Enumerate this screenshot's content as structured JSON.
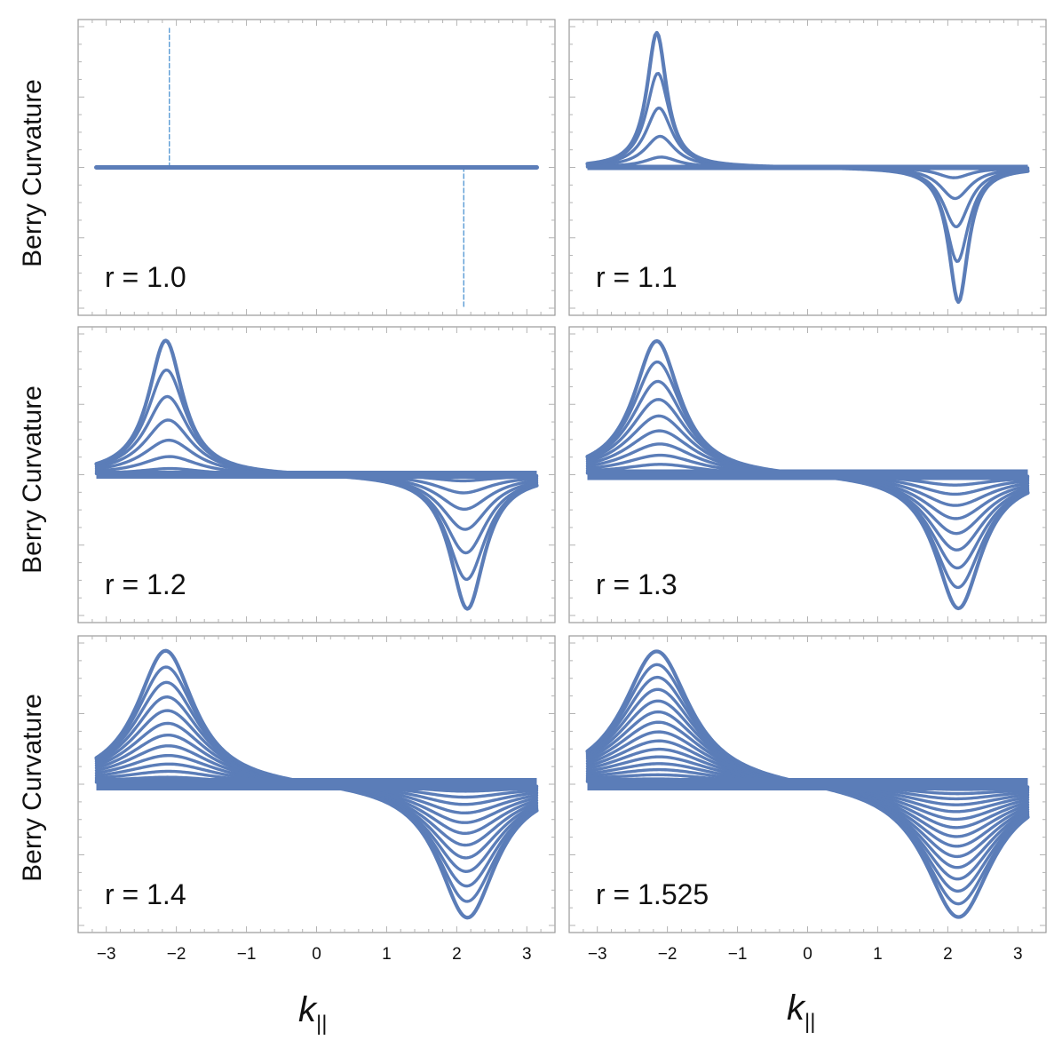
{
  "figure": {
    "ylabel": "Berry Curvature",
    "xlabel_main": "k",
    "xlabel_sub": "||",
    "line_color": "#5b7db8",
    "marker_color": "#5b9bd5",
    "frame_color": "#9a9a9a"
  },
  "chart_data": [
    {
      "type": "line",
      "panel": "top-left",
      "label": "r = 1.0",
      "r": 1.0,
      "xlim": [
        -3.3,
        3.3
      ],
      "ylim": [
        -1,
        1
      ],
      "xticks": [],
      "peak_center": 2.1,
      "peak_amplitude": 0.0,
      "num_curves": 1,
      "flat": true,
      "markers": [
        {
          "x": -2.1,
          "y0": 0,
          "y1": 1
        },
        {
          "x": 2.1,
          "y0": -1,
          "y1": 0
        }
      ]
    },
    {
      "type": "line",
      "panel": "top-right",
      "label": "r = 1.1",
      "r": 1.1,
      "xlim": [
        -3.3,
        3.3
      ],
      "ylim": [
        -1,
        1
      ],
      "xticks": [],
      "peak_center": 2.12,
      "peak_amplitude": 0.97,
      "peak_width": 0.17,
      "num_curves": 6,
      "flat": false
    },
    {
      "type": "line",
      "panel": "mid-left",
      "label": "r = 1.2",
      "r": 1.2,
      "xlim": [
        -3.3,
        3.3
      ],
      "ylim": [
        -1,
        1
      ],
      "xticks": [],
      "peak_center": 2.12,
      "peak_amplitude": 0.97,
      "peak_width": 0.3,
      "num_curves": 8,
      "flat": false
    },
    {
      "type": "line",
      "panel": "mid-right",
      "label": "r = 1.3",
      "r": 1.3,
      "xlim": [
        -3.3,
        3.3
      ],
      "ylim": [
        -1,
        1
      ],
      "xticks": [],
      "peak_center": 2.12,
      "peak_amplitude": 0.97,
      "peak_width": 0.4,
      "num_curves": 11,
      "flat": false
    },
    {
      "type": "line",
      "panel": "bottom-left",
      "label": "r = 1.4",
      "r": 1.4,
      "xlim": [
        -3.3,
        3.3
      ],
      "ylim": [
        -1,
        1
      ],
      "xticks": [
        -3,
        -2,
        -1,
        0,
        1,
        2,
        3
      ],
      "xtick_labels": [
        "−3",
        "−2",
        "−1",
        "0",
        "1",
        "2",
        "3"
      ],
      "peak_center": 2.12,
      "peak_amplitude": 0.97,
      "peak_width": 0.5,
      "num_curves": 14,
      "flat": false
    },
    {
      "type": "line",
      "panel": "bottom-right",
      "label": "r = 1.525",
      "r": 1.525,
      "xlim": [
        -3.3,
        3.3
      ],
      "ylim": [
        -1,
        1
      ],
      "xticks": [
        -3,
        -2,
        -1,
        0,
        1,
        2,
        3
      ],
      "xtick_labels": [
        "−3",
        "−2",
        "−1",
        "0",
        "1",
        "2",
        "3"
      ],
      "peak_center": 2.12,
      "peak_amplitude": 0.97,
      "peak_width": 0.58,
      "num_curves": 17,
      "flat": false
    }
  ]
}
